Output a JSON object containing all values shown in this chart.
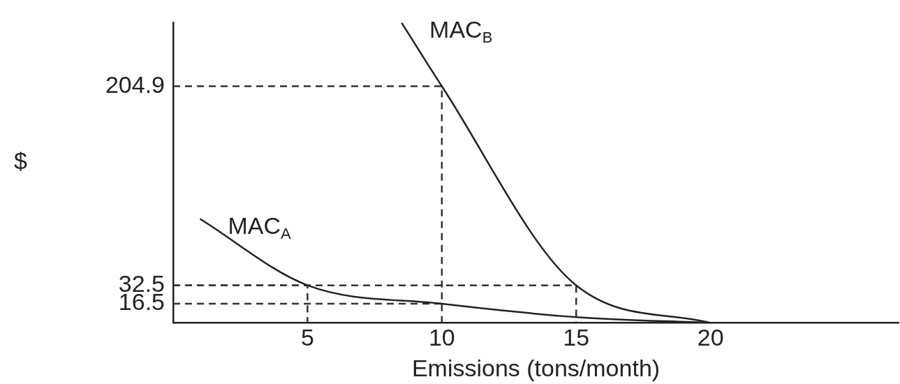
{
  "chart_data": {
    "type": "line",
    "xlabel": "Emissions (tons/month)",
    "ylabel": "$",
    "xlim": [
      0,
      27
    ],
    "xticks": [
      5,
      10,
      15,
      20
    ],
    "ylim": [
      0,
      260
    ],
    "yticks": [
      16.5,
      32.5,
      204.9
    ],
    "grid": false,
    "legend": false,
    "marker": "none",
    "series": [
      {
        "name": "MAC$_{A}$",
        "color": "#222222",
        "x": [
          1,
          5,
          10,
          15,
          20
        ],
        "values": [
          90,
          32.5,
          16.5,
          5,
          0
        ]
      },
      {
        "name": "MAC$_{B}$",
        "color": "#222222",
        "x": [
          8.5,
          10,
          15,
          20
        ],
        "values": [
          260,
          204.9,
          32.5,
          0
        ]
      },
      {
        "color": "#333333",
        "line_style": "dashed",
        "x": [
          0,
          10,
          10
        ],
        "values": [
          204.9,
          204.9,
          0
        ]
      },
      {
        "color": "#333333",
        "line_style": "dashed",
        "x": [
          0,
          15,
          15
        ],
        "values": [
          32.5,
          32.5,
          0
        ]
      },
      {
        "color": "#333333",
        "line_style": "dashed",
        "x": [
          0,
          5,
          5
        ],
        "values": [
          32.5,
          32.5,
          0
        ]
      },
      {
        "color": "#333333",
        "line_style": "dashed",
        "x": [
          0,
          10
        ],
        "values": [
          16.5,
          16.5
        ]
      }
    ]
  }
}
